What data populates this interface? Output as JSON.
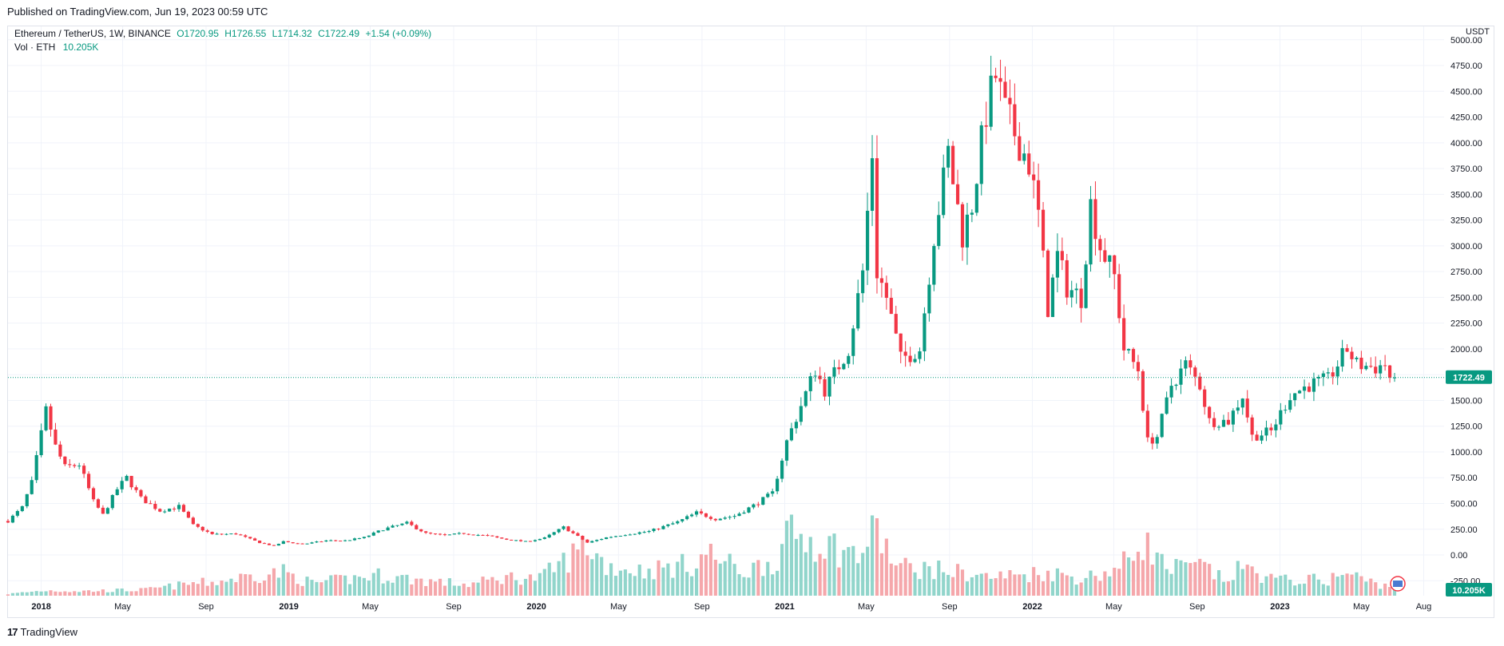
{
  "header": {
    "published": "Published on TradingView.com, Jun 19, 2023 00:59 UTC"
  },
  "legend": {
    "symbol": "Ethereum / TetherUS, 1W, BINANCE",
    "open": "O1720.95",
    "high": "H1726.55",
    "low": "L1714.32",
    "close": "C1722.49",
    "change": "+1.54 (+0.09%)",
    "vol_label": "Vol · ETH",
    "vol_value": "10.205K"
  },
  "axis": {
    "currency": "USDT",
    "last_price_label": "1722.49",
    "last_volume_label": "10.205K"
  },
  "footer": {
    "brand": "TradingView",
    "brand_mark": "17"
  },
  "colors": {
    "up": "#089981",
    "down": "#f23645",
    "vol_up": "#91d5cb",
    "vol_down": "#f5a7ab",
    "grid": "#f0f3fa"
  },
  "chart_data": {
    "type": "candlestick",
    "interval": "1W",
    "y_ticks": [
      "5000.00",
      "4750.00",
      "4500.00",
      "4250.00",
      "4000.00",
      "3750.00",
      "3500.00",
      "3250.00",
      "3000.00",
      "2750.00",
      "2500.00",
      "2250.00",
      "2000.00",
      "1750.00",
      "1500.00",
      "1250.00",
      "1000.00",
      "750.00",
      "500.00",
      "250.00",
      "0.00",
      "-250.00"
    ],
    "y_range": [
      -395,
      5130
    ],
    "x_ticks": [
      {
        "label": "2018",
        "date": "2018-01-01",
        "year": true
      },
      {
        "label": "May",
        "date": "2018-05-01"
      },
      {
        "label": "Sep",
        "date": "2018-09-01"
      },
      {
        "label": "2019",
        "date": "2019-01-01",
        "year": true
      },
      {
        "label": "May",
        "date": "2019-05-01"
      },
      {
        "label": "Sep",
        "date": "2019-09-01"
      },
      {
        "label": "2020",
        "date": "2020-01-01",
        "year": true
      },
      {
        "label": "May",
        "date": "2020-05-01"
      },
      {
        "label": "Sep",
        "date": "2020-09-01"
      },
      {
        "label": "2021",
        "date": "2021-01-01",
        "year": true
      },
      {
        "label": "May",
        "date": "2021-05-01"
      },
      {
        "label": "Sep",
        "date": "2021-09-01"
      },
      {
        "label": "2022",
        "date": "2022-01-01",
        "year": true
      },
      {
        "label": "May",
        "date": "2022-05-01"
      },
      {
        "label": "Sep",
        "date": "2022-09-01"
      },
      {
        "label": "2023",
        "date": "2023-01-01",
        "year": true
      },
      {
        "label": "May",
        "date": "2023-05-01"
      },
      {
        "label": "Aug",
        "date": "2023-08-01"
      }
    ],
    "x_range": [
      "2017-11-13",
      "2023-08-31"
    ],
    "last_close": 1722.49,
    "price_anchors": [
      [
        "2017-11-13",
        330
      ],
      [
        "2017-12-04",
        460
      ],
      [
        "2017-12-18",
        700
      ],
      [
        "2018-01-08",
        1400
      ],
      [
        "2018-01-22",
        1050
      ],
      [
        "2018-02-05",
        850
      ],
      [
        "2018-02-26",
        880
      ],
      [
        "2018-03-19",
        520
      ],
      [
        "2018-04-02",
        390
      ],
      [
        "2018-04-23",
        640
      ],
      [
        "2018-05-07",
        750
      ],
      [
        "2018-05-28",
        550
      ],
      [
        "2018-06-25",
        430
      ],
      [
        "2018-07-23",
        470
      ],
      [
        "2018-08-13",
        290
      ],
      [
        "2018-09-10",
        200
      ],
      [
        "2018-10-15",
        205
      ],
      [
        "2018-11-19",
        120
      ],
      [
        "2018-12-10",
        88
      ],
      [
        "2018-12-24",
        130
      ],
      [
        "2019-01-21",
        105
      ],
      [
        "2019-02-25",
        140
      ],
      [
        "2019-03-25",
        140
      ],
      [
        "2019-04-22",
        170
      ],
      [
        "2019-05-20",
        250
      ],
      [
        "2019-06-24",
        310
      ],
      [
        "2019-07-22",
        210
      ],
      [
        "2019-08-19",
        190
      ],
      [
        "2019-09-16",
        210
      ],
      [
        "2019-10-21",
        185
      ],
      [
        "2019-11-18",
        150
      ],
      [
        "2019-12-16",
        130
      ],
      [
        "2020-01-13",
        165
      ],
      [
        "2020-02-10",
        270
      ],
      [
        "2020-03-16",
        120
      ],
      [
        "2020-04-13",
        170
      ],
      [
        "2020-05-11",
        200
      ],
      [
        "2020-06-15",
        230
      ],
      [
        "2020-07-27",
        320
      ],
      [
        "2020-08-24",
        410
      ],
      [
        "2020-09-21",
        350
      ],
      [
        "2020-10-19",
        380
      ],
      [
        "2020-11-16",
        480
      ],
      [
        "2020-12-14",
        600
      ],
      [
        "2021-01-04",
        1100
      ],
      [
        "2021-02-15",
        1800
      ],
      [
        "2021-03-01",
        1600
      ],
      [
        "2021-04-05",
        2000
      ],
      [
        "2021-04-26",
        2750
      ],
      [
        "2021-05-10",
        3900
      ],
      [
        "2021-05-17",
        2750
      ],
      [
        "2021-05-31",
        2500
      ],
      [
        "2021-06-21",
        1900
      ],
      [
        "2021-07-19",
        2000
      ],
      [
        "2021-08-09",
        3100
      ],
      [
        "2021-08-30",
        3900
      ],
      [
        "2021-09-20",
        3100
      ],
      [
        "2021-10-04",
        3400
      ],
      [
        "2021-10-25",
        4300
      ],
      [
        "2021-11-08",
        4650
      ],
      [
        "2021-11-22",
        4300
      ],
      [
        "2021-12-06",
        4100
      ],
      [
        "2021-12-27",
        3800
      ],
      [
        "2022-01-10",
        3300
      ],
      [
        "2022-01-24",
        2400
      ],
      [
        "2022-02-07",
        2900
      ],
      [
        "2022-02-21",
        2600
      ],
      [
        "2022-03-14",
        2500
      ],
      [
        "2022-03-28",
        3400
      ],
      [
        "2022-04-11",
        3000
      ],
      [
        "2022-05-02",
        2700
      ],
      [
        "2022-05-16",
        2000
      ],
      [
        "2022-06-06",
        1800
      ],
      [
        "2022-06-20",
        1100
      ],
      [
        "2022-07-04",
        1150
      ],
      [
        "2022-07-25",
        1650
      ],
      [
        "2022-08-15",
        1850
      ],
      [
        "2022-09-05",
        1650
      ],
      [
        "2022-09-19",
        1300
      ],
      [
        "2022-10-17",
        1300
      ],
      [
        "2022-11-07",
        1550
      ],
      [
        "2022-11-21",
        1150
      ],
      [
        "2022-12-19",
        1200
      ],
      [
        "2023-01-16",
        1550
      ],
      [
        "2023-02-13",
        1650
      ],
      [
        "2023-03-13",
        1700
      ],
      [
        "2023-04-10",
        2000
      ],
      [
        "2023-04-24",
        1850
      ],
      [
        "2023-05-22",
        1820
      ],
      [
        "2023-06-05",
        1850
      ],
      [
        "2023-06-12",
        1720
      ],
      [
        "2023-06-19",
        1722
      ]
    ],
    "volume_anchors": [
      [
        "2017-11-13",
        28
      ],
      [
        "2018-01-08",
        85
      ],
      [
        "2018-03-05",
        75
      ],
      [
        "2018-06-04",
        95
      ],
      [
        "2018-08-13",
        200
      ],
      [
        "2018-09-10",
        215
      ],
      [
        "2018-11-12",
        330
      ],
      [
        "2018-12-24",
        380
      ],
      [
        "2019-02-04",
        200
      ],
      [
        "2019-05-13",
        330
      ],
      [
        "2019-07-15",
        250
      ],
      [
        "2019-09-23",
        180
      ],
      [
        "2019-11-18",
        300
      ],
      [
        "2020-01-06",
        280
      ],
      [
        "2020-03-16",
        820
      ],
      [
        "2020-04-13",
        480
      ],
      [
        "2020-06-08",
        400
      ],
      [
        "2020-08-24",
        520
      ],
      [
        "2020-09-07",
        700
      ],
      [
        "2020-11-02",
        380
      ],
      [
        "2020-12-21",
        600
      ],
      [
        "2021-01-11",
        1000
      ],
      [
        "2021-02-22",
        880
      ],
      [
        "2021-04-19",
        640
      ],
      [
        "2021-05-17",
        1070
      ],
      [
        "2021-06-14",
        470
      ],
      [
        "2021-08-02",
        430
      ],
      [
        "2021-09-13",
        380
      ],
      [
        "2021-11-01",
        300
      ],
      [
        "2022-01-24",
        380
      ],
      [
        "2022-03-14",
        280
      ],
      [
        "2022-05-09",
        430
      ],
      [
        "2022-06-13",
        900
      ],
      [
        "2022-07-18",
        430
      ],
      [
        "2022-09-12",
        470
      ],
      [
        "2022-10-10",
        240
      ],
      [
        "2022-11-07",
        460
      ],
      [
        "2022-12-26",
        250
      ],
      [
        "2023-03-13",
        260
      ],
      [
        "2023-04-10",
        360
      ],
      [
        "2023-05-15",
        220
      ],
      [
        "2023-06-19",
        130
      ]
    ]
  }
}
